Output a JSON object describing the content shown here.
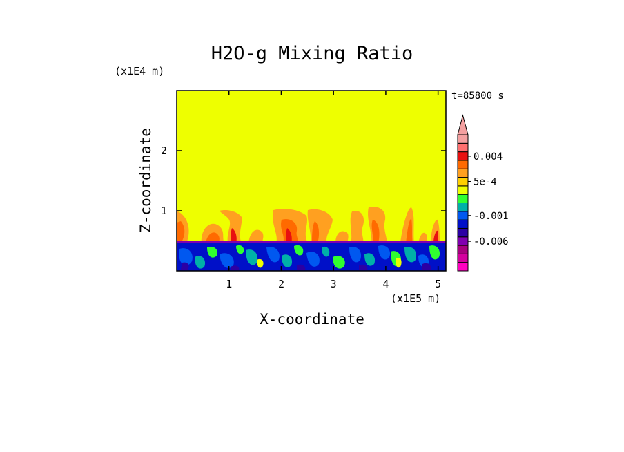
{
  "chart_data": {
    "type": "heatmap",
    "title": "H2O-g Mixing Ratio",
    "xlabel": "X-coordinate",
    "ylabel": "Z-coordinate",
    "x_unit_label": "(x1E5 m)",
    "y_unit_label": "(x1E4 m)",
    "time_label": "t=85800 s",
    "xlim": [
      0,
      5.15
    ],
    "ylim": [
      0,
      3.0
    ],
    "x_ticks": [
      1,
      2,
      3,
      4,
      5
    ],
    "x_tick_labels": [
      "1",
      "2",
      "3",
      "4",
      "5"
    ],
    "y_ticks": [
      1,
      2
    ],
    "y_tick_labels": [
      "1",
      "2"
    ],
    "colorbar": {
      "levels": [
        -0.012,
        -0.01,
        -0.008,
        -0.006,
        -0.004,
        -0.002,
        -0.001,
        -0.0005,
        -0.0001,
        0.0001,
        0.0005,
        0.001,
        0.002,
        0.004,
        0.006,
        0.008
      ],
      "colors": [
        "#ff00c0",
        "#d4009e",
        "#a8007f",
        "#8000b0",
        "#2b00a4",
        "#0010c8",
        "#0058f0",
        "#00b0a8",
        "#30ff30",
        "#eeff00",
        "#ffd000",
        "#ffa020",
        "#ff6a00",
        "#e81010",
        "#ff7070",
        "#f4a0a0"
      ],
      "tick_values": [
        0.004,
        0.0005,
        -0.001,
        -0.006
      ],
      "tick_labels": [
        "0.004",
        "5e-4",
        "-0.001",
        "-0.006"
      ],
      "extend": "max"
    },
    "regions": [
      {
        "z_min": 0.5,
        "z_max": 3.0,
        "description_value": 0.0,
        "color": "#eeff00"
      },
      {
        "z_min": 0.0,
        "z_max": 0.5,
        "description_value": -0.002,
        "color": "#0010c8"
      }
    ],
    "grid": false,
    "legend": "colorbar-right"
  }
}
